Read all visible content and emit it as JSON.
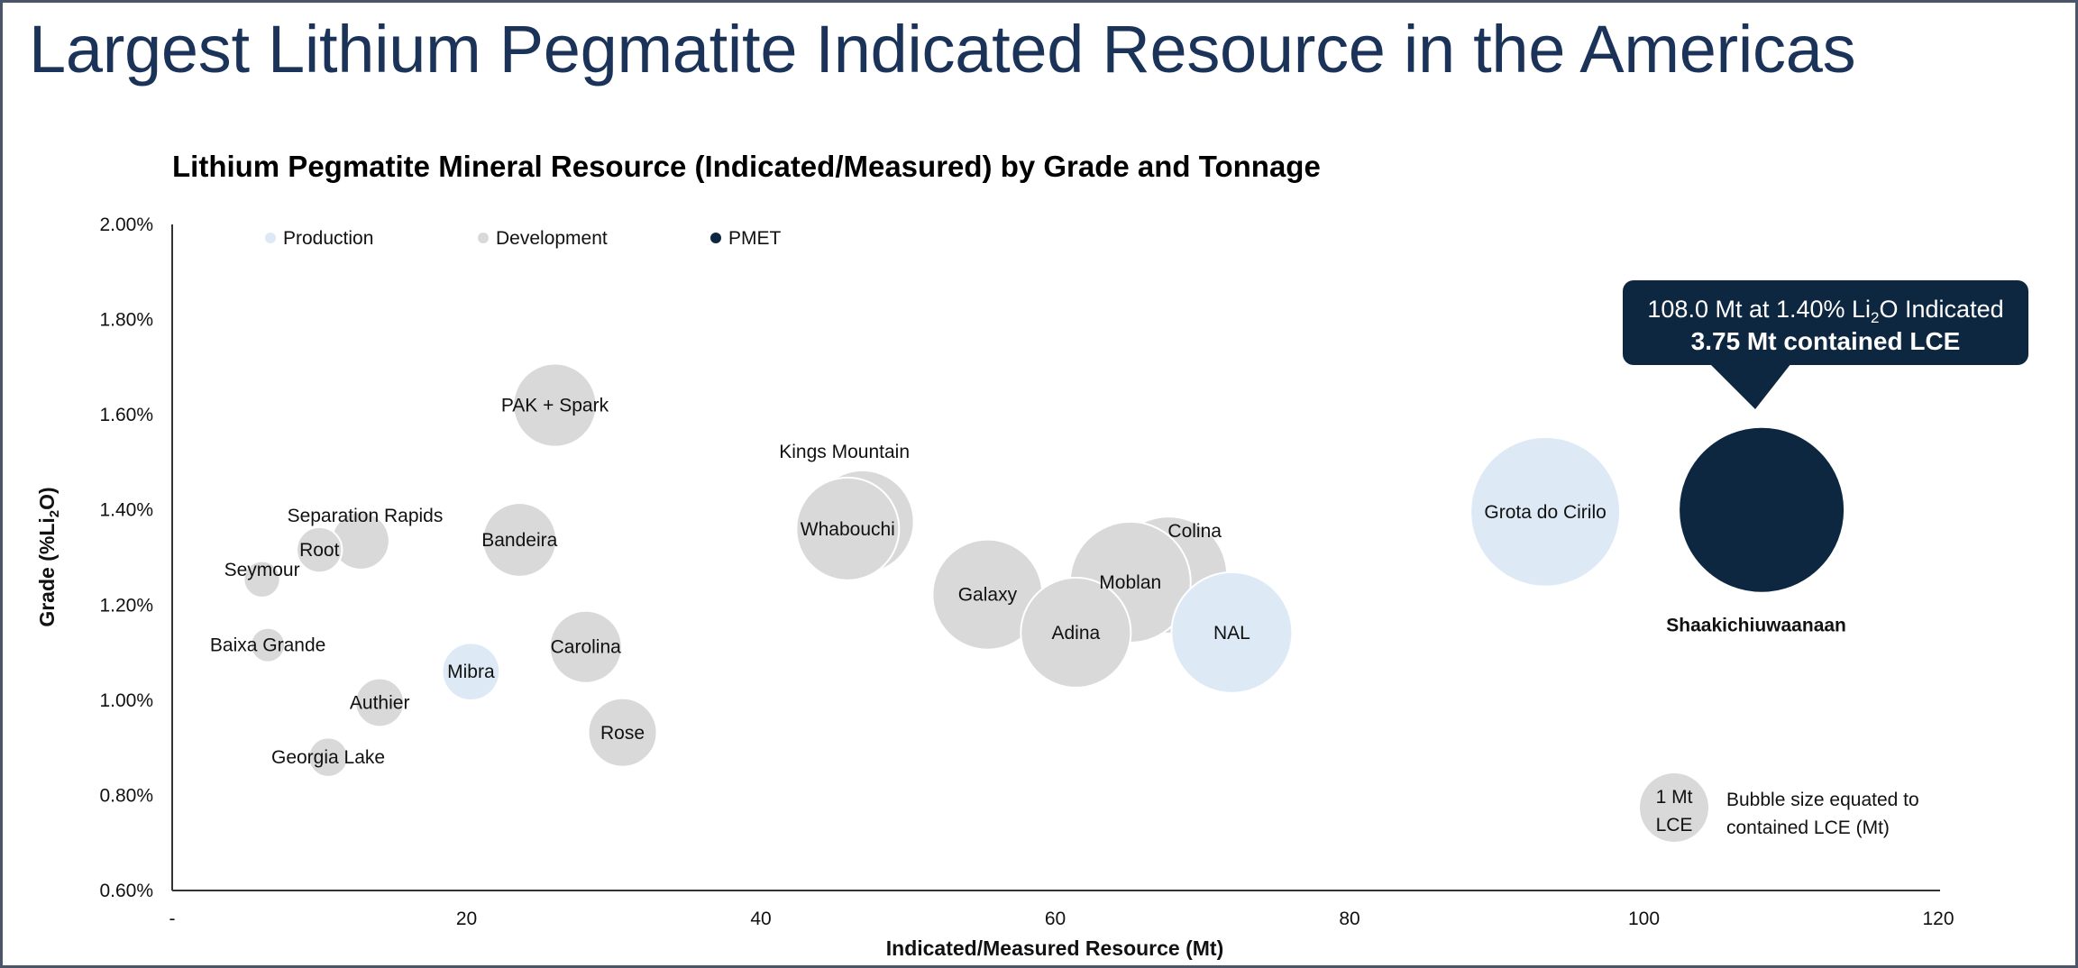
{
  "page_title": "Largest Lithium Pegmatite Indicated Resource in the Americas",
  "colors": {
    "production": "#ddeaf6",
    "development": "#d9d9d9",
    "pmet": "#0e2741",
    "title": "#1b3358"
  },
  "chart_data": {
    "type": "scatter",
    "subtype": "bubble",
    "title": "Lithium Pegmatite Mineral Resource (Indicated/Measured) by Grade and Tonnage",
    "xlabel": "Indicated/Measured Resource (Mt)",
    "ylabel_main": "Grade (%Li",
    "ylabel_sub": "2",
    "ylabel_end": "O)",
    "xlim": [
      0,
      120
    ],
    "ylim": [
      0.6,
      2.0
    ],
    "x_ticks": [
      {
        "v": 0,
        "label": "-"
      },
      {
        "v": 20,
        "label": "20"
      },
      {
        "v": 40,
        "label": "40"
      },
      {
        "v": 60,
        "label": "60"
      },
      {
        "v": 80,
        "label": "80"
      },
      {
        "v": 100,
        "label": "100"
      },
      {
        "v": 120,
        "label": "120"
      }
    ],
    "y_ticks": [
      {
        "v": 2.0,
        "label": "2.00%"
      },
      {
        "v": 1.8,
        "label": "1.80%"
      },
      {
        "v": 1.6,
        "label": "1.60%"
      },
      {
        "v": 1.4,
        "label": "1.40%"
      },
      {
        "v": 1.2,
        "label": "1.20%"
      },
      {
        "v": 1.0,
        "label": "1.00%"
      },
      {
        "v": 0.8,
        "label": "0.80%"
      },
      {
        "v": 0.6,
        "label": "0.60%"
      }
    ],
    "grid": false,
    "legend": {
      "placement": "top-left",
      "items": [
        {
          "name": "Production",
          "category": "production"
        },
        {
          "name": "Development",
          "category": "development"
        },
        {
          "name": "PMET",
          "category": "pmet"
        }
      ]
    },
    "series": [
      {
        "name": "Kings Mountain",
        "x": 46.9,
        "y": 1.375,
        "lce": 1.44,
        "category": "development"
      },
      {
        "name": "Whabouchi",
        "x": 45.9,
        "y": 1.36,
        "lce": 1.44,
        "category": "development"
      },
      {
        "name": "PAK + Spark",
        "x": 26.0,
        "y": 1.62,
        "lce": 0.94,
        "category": "development"
      },
      {
        "name": "Separation Rapids",
        "x": 12.8,
        "y": 1.335,
        "lce": 0.45,
        "category": "development"
      },
      {
        "name": "Root",
        "x": 10.0,
        "y": 1.316,
        "lce": 0.28,
        "category": "development"
      },
      {
        "name": "Seymour",
        "x": 6.1,
        "y": 1.254,
        "lce": 0.18,
        "category": "development"
      },
      {
        "name": "Bandeira",
        "x": 23.6,
        "y": 1.337,
        "lce": 0.74,
        "category": "development"
      },
      {
        "name": "Baixa Grande",
        "x": 6.5,
        "y": 1.116,
        "lce": 0.16,
        "category": "development"
      },
      {
        "name": "Mibra",
        "x": 20.3,
        "y": 1.06,
        "lce": 0.45,
        "category": "production"
      },
      {
        "name": "Authier",
        "x": 14.1,
        "y": 0.995,
        "lce": 0.32,
        "category": "development"
      },
      {
        "name": "Georgia Lake",
        "x": 10.6,
        "y": 0.88,
        "lce": 0.21,
        "category": "development"
      },
      {
        "name": "Carolina",
        "x": 28.1,
        "y": 1.112,
        "lce": 0.71,
        "category": "development"
      },
      {
        "name": "Rose",
        "x": 30.6,
        "y": 0.932,
        "lce": 0.64,
        "category": "development"
      },
      {
        "name": "Galaxy",
        "x": 55.4,
        "y": 1.222,
        "lce": 1.65,
        "category": "development"
      },
      {
        "name": "Colina",
        "x": 67.7,
        "y": 1.263,
        "lce": 1.87,
        "category": "development"
      },
      {
        "name": "Moblan",
        "x": 65.1,
        "y": 1.248,
        "lce": 1.99,
        "category": "development"
      },
      {
        "name": "Adina",
        "x": 61.4,
        "y": 1.142,
        "lce": 1.65,
        "category": "development"
      },
      {
        "name": "NAL",
        "x": 72.0,
        "y": 1.142,
        "lce": 1.99,
        "category": "production"
      },
      {
        "name": "Grota do Cirilo",
        "x": 93.3,
        "y": 1.396,
        "lce": 3.05,
        "category": "production"
      },
      {
        "name": "Shaakichiuwaanaan",
        "x": 108.0,
        "y": 1.4,
        "lce": 3.75,
        "category": "pmet"
      }
    ],
    "callout": {
      "line1_pre": "108.0 Mt at 1.40% Li",
      "line1_sub": "2",
      "line1_post": "O Indicated",
      "line2": "3.75 Mt contained LCE"
    },
    "size_legend": {
      "bubble_line1": "1 Mt",
      "bubble_line2": "LCE",
      "text_line1": "Bubble size equated to",
      "text_line2": "contained LCE (Mt)"
    }
  }
}
